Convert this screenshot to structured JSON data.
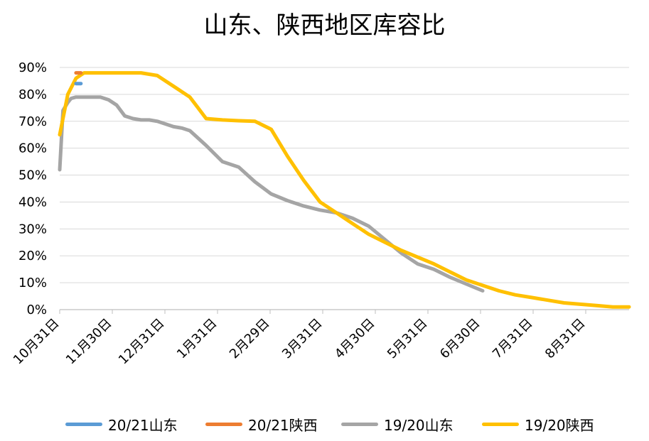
{
  "chart_data": {
    "type": "line",
    "title": "山东、陕西地区库容比",
    "xlabel": "",
    "ylabel": "",
    "ylim": [
      0,
      90
    ],
    "y_ticks": [
      "0%",
      "10%",
      "20%",
      "30%",
      "40%",
      "50%",
      "60%",
      "70%",
      "80%",
      "90%"
    ],
    "x_ticks": [
      "10月31日",
      "11月30日",
      "12月31日",
      "1月31日",
      "2月29日",
      "3月31日",
      "4月30日",
      "5月31日",
      "6月30日",
      "7月31日",
      "8月31日"
    ],
    "grid": true,
    "legend_position": "bottom",
    "series": [
      {
        "name": "20/21山东",
        "color": "#5B9BD5",
        "points": [
          [
            1.0,
            84
          ],
          [
            1.3,
            84
          ]
        ]
      },
      {
        "name": "20/21陕西",
        "color": "#ED7D31",
        "points": [
          [
            1.0,
            88
          ],
          [
            1.3,
            88
          ]
        ]
      },
      {
        "name": "19/20山东",
        "color": "#A5A5A5",
        "points": [
          [
            0,
            52
          ],
          [
            0.2,
            74
          ],
          [
            0.5,
            77
          ],
          [
            0.7,
            78.5
          ],
          [
            1,
            79
          ],
          [
            1.5,
            79
          ],
          [
            2,
            79
          ],
          [
            2.5,
            79
          ],
          [
            3,
            78
          ],
          [
            3.5,
            76
          ],
          [
            4,
            72
          ],
          [
            4.5,
            71
          ],
          [
            5,
            70.5
          ],
          [
            5.5,
            70.5
          ],
          [
            6,
            70
          ],
          [
            7,
            68
          ],
          [
            7.5,
            67.5
          ],
          [
            8,
            66.5
          ],
          [
            9,
            61
          ],
          [
            10,
            55
          ],
          [
            11,
            53
          ],
          [
            12,
            47.5
          ],
          [
            13,
            43
          ],
          [
            14,
            40.5
          ],
          [
            15,
            38.5
          ],
          [
            16,
            37
          ],
          [
            17,
            36
          ],
          [
            18,
            34
          ],
          [
            19,
            31
          ],
          [
            20,
            26
          ],
          [
            21,
            21
          ],
          [
            22,
            17
          ],
          [
            23,
            15
          ],
          [
            24,
            12
          ],
          [
            25,
            9.5
          ],
          [
            26,
            7
          ]
        ]
      },
      {
        "name": "19/20陕西",
        "color": "#FFC000",
        "points": [
          [
            0,
            65
          ],
          [
            0.5,
            80
          ],
          [
            1,
            86
          ],
          [
            1.5,
            88
          ],
          [
            2,
            88
          ],
          [
            3,
            88
          ],
          [
            4,
            88
          ],
          [
            5,
            88
          ],
          [
            6,
            87
          ],
          [
            7,
            83
          ],
          [
            8,
            79
          ],
          [
            8.5,
            75
          ],
          [
            9,
            71
          ],
          [
            10,
            70.5
          ],
          [
            11,
            70.2
          ],
          [
            12,
            70
          ],
          [
            13,
            67
          ],
          [
            14,
            57
          ],
          [
            15,
            48
          ],
          [
            16,
            40
          ],
          [
            17,
            36
          ],
          [
            18,
            32
          ],
          [
            19,
            28
          ],
          [
            20,
            25
          ],
          [
            21,
            22
          ],
          [
            22,
            19.5
          ],
          [
            23,
            17
          ],
          [
            24,
            14
          ],
          [
            25,
            11
          ],
          [
            26,
            9
          ],
          [
            27,
            7
          ],
          [
            28,
            5.5
          ],
          [
            29,
            4.5
          ],
          [
            30,
            3.5
          ],
          [
            31,
            2.5
          ],
          [
            32,
            2
          ],
          [
            33,
            1.5
          ],
          [
            34,
            1
          ],
          [
            35,
            1
          ]
        ]
      }
    ]
  }
}
